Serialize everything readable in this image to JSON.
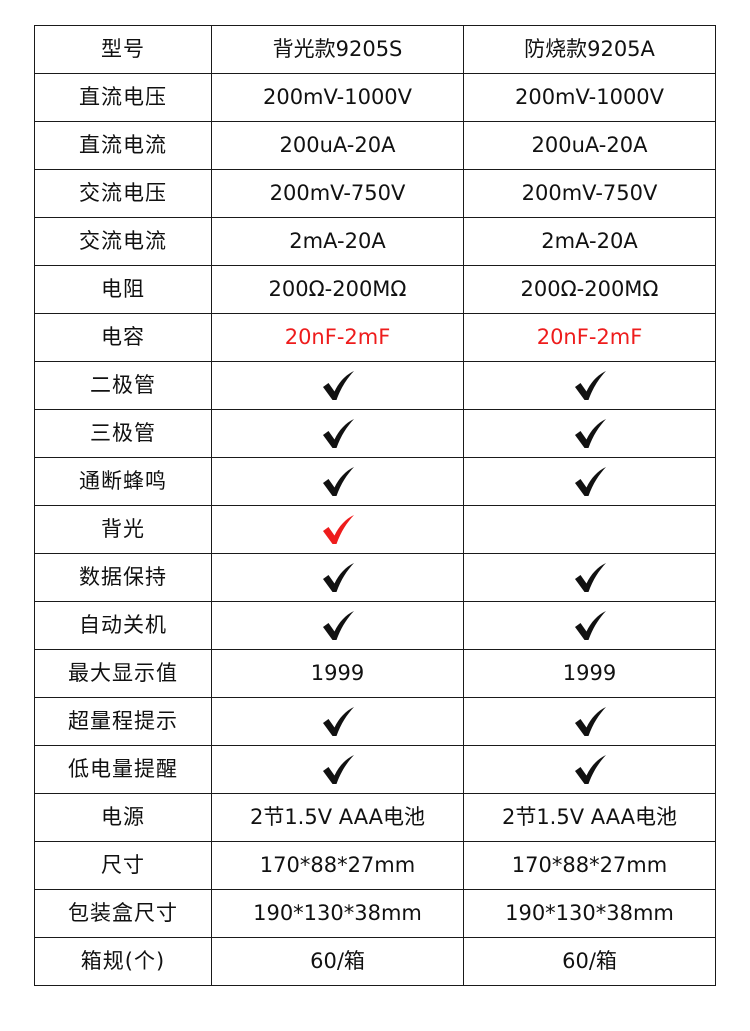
{
  "colors": {
    "border": "#1a1a1a",
    "text": "#111111",
    "highlight_red": "#ee1c1c"
  },
  "header": {
    "label": "型号",
    "model_a": "背光款9205S",
    "model_b": "防烧款9205A"
  },
  "rows": [
    {
      "label": "直流电压",
      "a": "200mV-1000V",
      "b": "200mV-1000V"
    },
    {
      "label": "直流电流",
      "a": "200uA-20A",
      "b": "200uA-20A"
    },
    {
      "label": "交流电压",
      "a": "200mV-750V",
      "b": "200mV-750V"
    },
    {
      "label": "交流电流",
      "a": "2mA-20A",
      "b": "2mA-20A"
    },
    {
      "label": "电阻",
      "a": "200Ω-200MΩ",
      "b": "200Ω-200MΩ"
    },
    {
      "label": "电容",
      "a": "20nF-2mF",
      "b": "20nF-2mF",
      "a_color": "red",
      "b_color": "red"
    },
    {
      "label": "二极管",
      "a_icon": "check-icon",
      "b_icon": "check-icon"
    },
    {
      "label": "三极管",
      "a_icon": "check-icon",
      "b_icon": "check-icon"
    },
    {
      "label": "通断蜂鸣",
      "a_icon": "check-icon",
      "b_icon": "check-icon"
    },
    {
      "label": "背光",
      "a_icon": "check-icon",
      "a_icon_color": "red",
      "b_icon": null
    },
    {
      "label": "数据保持",
      "a_icon": "check-icon",
      "b_icon": "check-icon"
    },
    {
      "label": "自动关机",
      "a_icon": "check-icon",
      "b_icon": "check-icon"
    },
    {
      "label": "最大显示值",
      "a": "1999",
      "b": "1999"
    },
    {
      "label": "超量程提示",
      "a_icon": "check-icon",
      "b_icon": "check-icon"
    },
    {
      "label": "低电量提醒",
      "a_icon": "check-icon",
      "b_icon": "check-icon"
    },
    {
      "label": "电源",
      "a": "2节1.5V   AAA电池",
      "b": "2节1.5V   AAA电池"
    },
    {
      "label": "尺寸",
      "a": "170*88*27mm",
      "b": "170*88*27mm"
    },
    {
      "label": "包装盒尺寸",
      "a": "190*130*38mm",
      "b": "190*130*38mm"
    },
    {
      "label": "箱规(个)",
      "a": "60/箱",
      "b": "60/箱"
    }
  ]
}
